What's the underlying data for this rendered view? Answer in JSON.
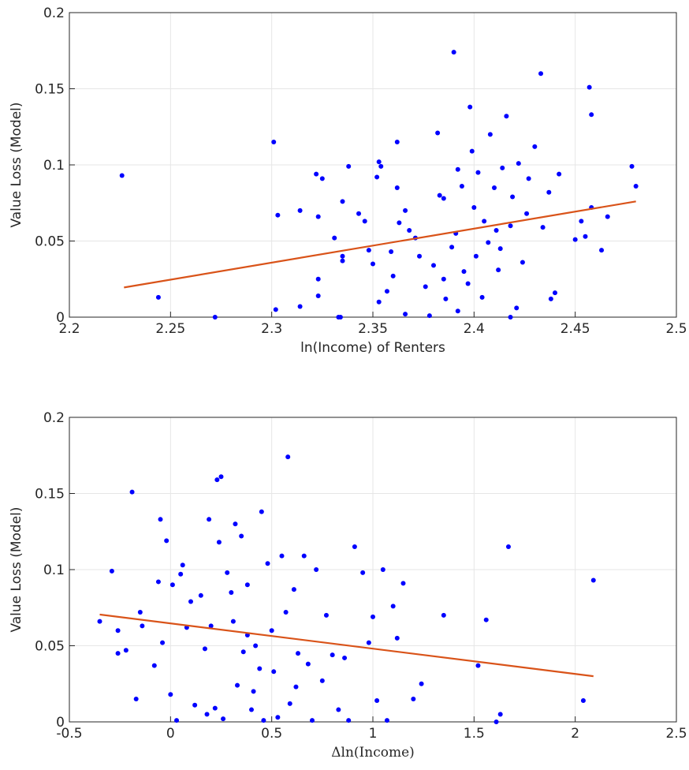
{
  "chart_data": [
    {
      "type": "scatter",
      "x_label": "ln(Income) of Renters",
      "y_label": "Value Loss (Model)",
      "xlim": [
        2.2,
        2.5
      ],
      "ylim": [
        0,
        0.2
      ],
      "xticks": [
        2.2,
        2.25,
        2.3,
        2.35,
        2.4,
        2.45,
        2.5
      ],
      "yticks": [
        0,
        0.05,
        0.1,
        0.15,
        0.2
      ],
      "grid": true,
      "points": {
        "color": "#0000ff",
        "x": [
          2.226,
          2.244,
          2.272,
          2.301,
          2.302,
          2.303,
          2.314,
          2.314,
          2.322,
          2.325,
          2.323,
          2.323,
          2.323,
          2.331,
          2.333,
          2.334,
          2.335,
          2.335,
          2.335,
          2.338,
          2.343,
          2.346,
          2.348,
          2.35,
          2.352,
          2.353,
          2.354,
          2.357,
          2.359,
          2.36,
          2.362,
          2.362,
          2.363,
          2.366,
          2.368,
          2.371,
          2.373,
          2.376,
          2.38,
          2.382,
          2.383,
          2.385,
          2.386,
          2.389,
          2.39,
          2.391,
          2.392,
          2.394,
          2.395,
          2.397,
          2.398,
          2.399,
          2.4,
          2.401,
          2.402,
          2.404,
          2.405,
          2.407,
          2.408,
          2.41,
          2.412,
          2.413,
          2.414,
          2.416,
          2.418,
          2.419,
          2.421,
          2.422,
          2.424,
          2.426,
          2.43,
          2.433,
          2.434,
          2.437,
          2.438,
          2.44,
          2.442,
          2.45,
          2.453,
          2.455,
          2.457,
          2.458,
          2.458,
          2.463,
          2.466,
          2.478,
          2.48,
          2.418,
          2.392,
          2.378,
          2.366,
          2.353,
          2.427,
          2.411,
          2.385
        ],
        "y": [
          0.093,
          0.013,
          0,
          0.115,
          0.005,
          0.067,
          0.07,
          0.007,
          0.094,
          0.091,
          0.025,
          0.014,
          0.066,
          0.052,
          0,
          0,
          0.037,
          0.04,
          0.076,
          0.099,
          0.068,
          0.063,
          0.044,
          0.035,
          0.092,
          0.102,
          0.099,
          0.017,
          0.043,
          0.027,
          0.115,
          0.085,
          0.062,
          0.07,
          0.057,
          0.052,
          0.04,
          0.02,
          0.034,
          0.121,
          0.08,
          0.078,
          0.012,
          0.046,
          0.174,
          0.055,
          0.097,
          0.086,
          0.03,
          0.022,
          0.138,
          0.109,
          0.072,
          0.04,
          0.095,
          0.013,
          0.063,
          0.049,
          0.12,
          0.085,
          0.031,
          0.045,
          0.098,
          0.132,
          0.06,
          0.079,
          0.006,
          0.101,
          0.036,
          0.068,
          0.112,
          0.16,
          0.059,
          0.082,
          0.012,
          0.016,
          0.094,
          0.051,
          0.063,
          0.053,
          0.151,
          0.133,
          0.072,
          0.044,
          0.066,
          0.099,
          0.086,
          0,
          0.004,
          0.001,
          0.002,
          0.01,
          0.091,
          0.057,
          0.025
        ]
      },
      "fit": {
        "color": "#d95319",
        "x": [
          2.227,
          2.48
        ],
        "y": [
          0.0195,
          0.076
        ]
      }
    },
    {
      "type": "scatter",
      "x_label": "Δln(Income)",
      "y_label": "Value Loss (Model)",
      "xlim": [
        -0.5,
        2.5
      ],
      "ylim": [
        0,
        0.2
      ],
      "xticks": [
        -0.5,
        0,
        0.5,
        1,
        1.5,
        2,
        2.5
      ],
      "yticks": [
        0,
        0.05,
        0.1,
        0.15,
        0.2
      ],
      "grid": true,
      "points": {
        "color": "#0000ff",
        "x": [
          -0.35,
          -0.29,
          -0.26,
          -0.26,
          -0.22,
          -0.19,
          -0.17,
          -0.15,
          -0.14,
          -0.08,
          -0.06,
          -0.05,
          -0.04,
          -0.02,
          0,
          0.01,
          0.03,
          0.05,
          0.06,
          0.08,
          0.1,
          0.12,
          0.15,
          0.17,
          0.19,
          0.2,
          0.22,
          0.23,
          0.24,
          0.25,
          0.26,
          0.28,
          0.3,
          0.31,
          0.32,
          0.33,
          0.35,
          0.36,
          0.38,
          0.4,
          0.42,
          0.44,
          0.45,
          0.46,
          0.48,
          0.5,
          0.51,
          0.53,
          0.55,
          0.57,
          0.58,
          0.59,
          0.61,
          0.63,
          0.66,
          0.68,
          0.7,
          0.72,
          0.75,
          0.77,
          0.8,
          0.83,
          0.86,
          0.88,
          0.91,
          0.95,
          0.98,
          1,
          1.02,
          1.05,
          1.07,
          1.1,
          1.12,
          1.15,
          1.2,
          1.24,
          1.35,
          1.52,
          1.56,
          1.61,
          1.63,
          1.67,
          2.04,
          2.09,
          0.18,
          0.41,
          0.62,
          0.38
        ],
        "y": [
          0.066,
          0.099,
          0.045,
          0.06,
          0.047,
          0.151,
          0.015,
          0.072,
          0.063,
          0.037,
          0.092,
          0.133,
          0.052,
          0.119,
          0.018,
          0.09,
          0.001,
          0.097,
          0.103,
          0.062,
          0.079,
          0.011,
          0.083,
          0.048,
          0.133,
          0.063,
          0.009,
          0.159,
          0.118,
          0.161,
          0.002,
          0.098,
          0.085,
          0.066,
          0.13,
          0.024,
          0.122,
          0.046,
          0.057,
          0.008,
          0.05,
          0.035,
          0.138,
          0.001,
          0.104,
          0.06,
          0.033,
          0.003,
          0.109,
          0.072,
          0.174,
          0.012,
          0.087,
          0.045,
          0.109,
          0.038,
          0.001,
          0.1,
          0.027,
          0.07,
          0.044,
          0.008,
          0.042,
          0.001,
          0.115,
          0.098,
          0.052,
          0.069,
          0.014,
          0.1,
          0.001,
          0.076,
          0.055,
          0.091,
          0.015,
          0.025,
          0.07,
          0.037,
          0.067,
          0,
          0.005,
          0.115,
          0.014,
          0.093,
          0.005,
          0.02,
          0.023,
          0.09
        ]
      },
      "fit": {
        "color": "#d95319",
        "x": [
          -0.35,
          2.09
        ],
        "y": [
          0.0705,
          0.03
        ]
      }
    }
  ]
}
